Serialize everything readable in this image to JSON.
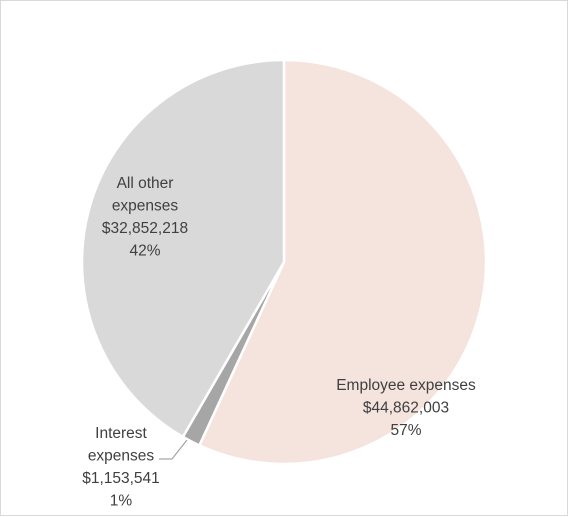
{
  "chart_data": {
    "type": "pie",
    "title": "",
    "slices": [
      {
        "name": "Employee expenses",
        "label_lines": [
          "Employee expenses"
        ],
        "value": 44862003,
        "value_label": "$44,862,003",
        "percent_label": "57%",
        "color": "#f5e4de"
      },
      {
        "name": "Interest expenses",
        "label_lines": [
          "Interest",
          "expenses"
        ],
        "value": 1153541,
        "value_label": "$1,153,541",
        "percent_label": "1%",
        "color": "#a6a6a6"
      },
      {
        "name": "All other expenses",
        "label_lines": [
          "All other",
          "expenses"
        ],
        "value": 32852218,
        "value_label": "$32,852,218",
        "percent_label": "42%",
        "color": "#d9d9d9"
      }
    ],
    "start_angle": "12 o'clock",
    "direction": "clockwise",
    "legend": "none",
    "slice_border_color": "#ffffff",
    "leader_line_color": "#a6a6a6"
  }
}
